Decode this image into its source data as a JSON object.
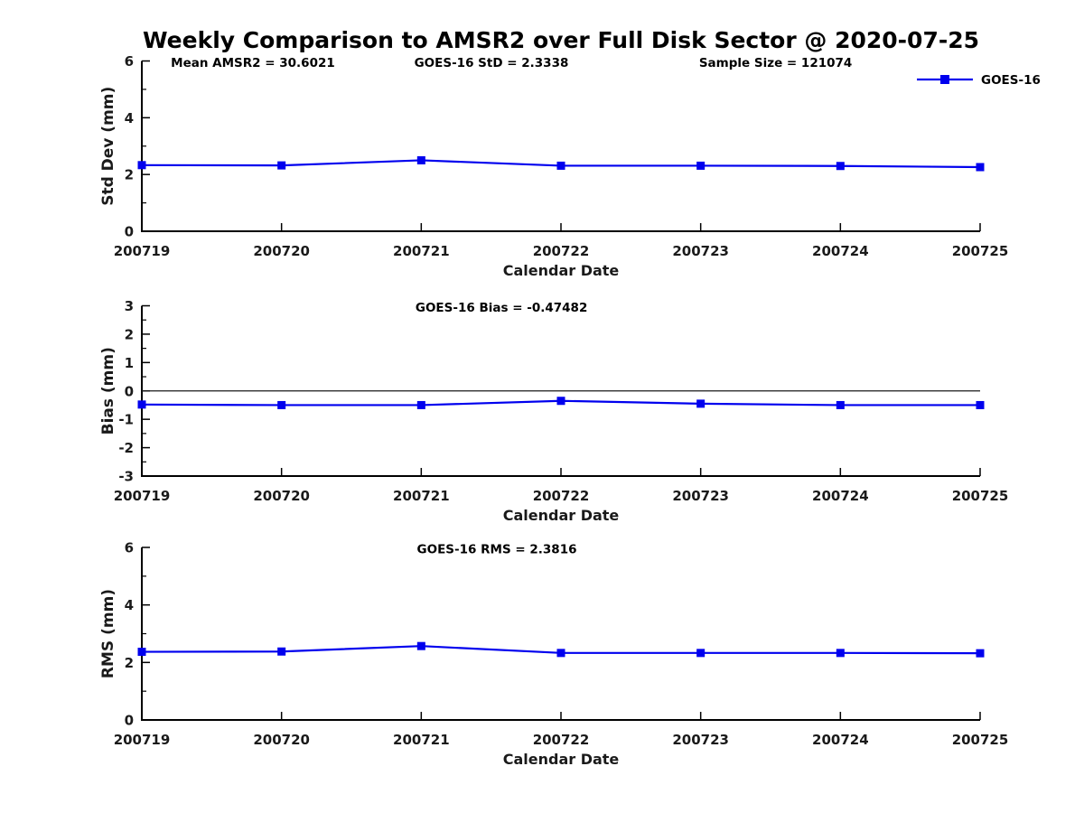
{
  "title": "Weekly Comparison to AMSR2 over Full Disk Sector @ 2020-07-25",
  "legend": {
    "label": "GOES-16"
  },
  "colors": {
    "line": "#0000ee",
    "axis": "#000000",
    "zero_line": "#1a1a1a",
    "text": "#1a1a1a"
  },
  "chart_data": [
    {
      "type": "line",
      "name": "std-dev",
      "annotations": [
        "Mean AMSR2 = 30.6021",
        "GOES-16 StD = 2.3338",
        "Sample Size = 121074"
      ],
      "x": [
        "200719",
        "200720",
        "200721",
        "200722",
        "200723",
        "200724",
        "200725"
      ],
      "series": [
        {
          "name": "GOES-16",
          "values": [
            2.33,
            2.32,
            2.5,
            2.31,
            2.31,
            2.3,
            2.26
          ]
        }
      ],
      "xlabel": "Calendar Date",
      "ylabel": "Std Dev (mm)",
      "ylim": [
        0,
        6
      ],
      "yticks": [
        0,
        2,
        4,
        6
      ],
      "yticks_minor": [
        1,
        3,
        5
      ],
      "zero_line": false,
      "grid": false,
      "legend_position": "top-right-outside"
    },
    {
      "type": "line",
      "name": "bias",
      "annotations": [
        "GOES-16 Bias  = -0.47482"
      ],
      "x": [
        "200719",
        "200720",
        "200721",
        "200722",
        "200723",
        "200724",
        "200725"
      ],
      "series": [
        {
          "name": "GOES-16",
          "values": [
            -0.48,
            -0.5,
            -0.5,
            -0.35,
            -0.45,
            -0.5,
            -0.5
          ]
        }
      ],
      "xlabel": "Calendar Date",
      "ylabel": "Bias (mm)",
      "ylim": [
        -3,
        3
      ],
      "yticks": [
        -3,
        -2,
        -1,
        0,
        1,
        2,
        3
      ],
      "yticks_minor": [
        -2.5,
        -1.5,
        -0.5,
        0.5,
        1.5,
        2.5
      ],
      "zero_line": true,
      "grid": false
    },
    {
      "type": "line",
      "name": "rms",
      "annotations": [
        "GOES-16 RMS = 2.3816"
      ],
      "x": [
        "200719",
        "200720",
        "200721",
        "200722",
        "200723",
        "200724",
        "200725"
      ],
      "series": [
        {
          "name": "GOES-16",
          "values": [
            2.37,
            2.38,
            2.57,
            2.33,
            2.33,
            2.33,
            2.32
          ]
        }
      ],
      "xlabel": "Calendar Date",
      "ylabel": "RMS (mm)",
      "ylim": [
        0,
        6
      ],
      "yticks": [
        0,
        2,
        4,
        6
      ],
      "yticks_minor": [
        1,
        3,
        5
      ],
      "zero_line": false,
      "grid": false
    }
  ]
}
